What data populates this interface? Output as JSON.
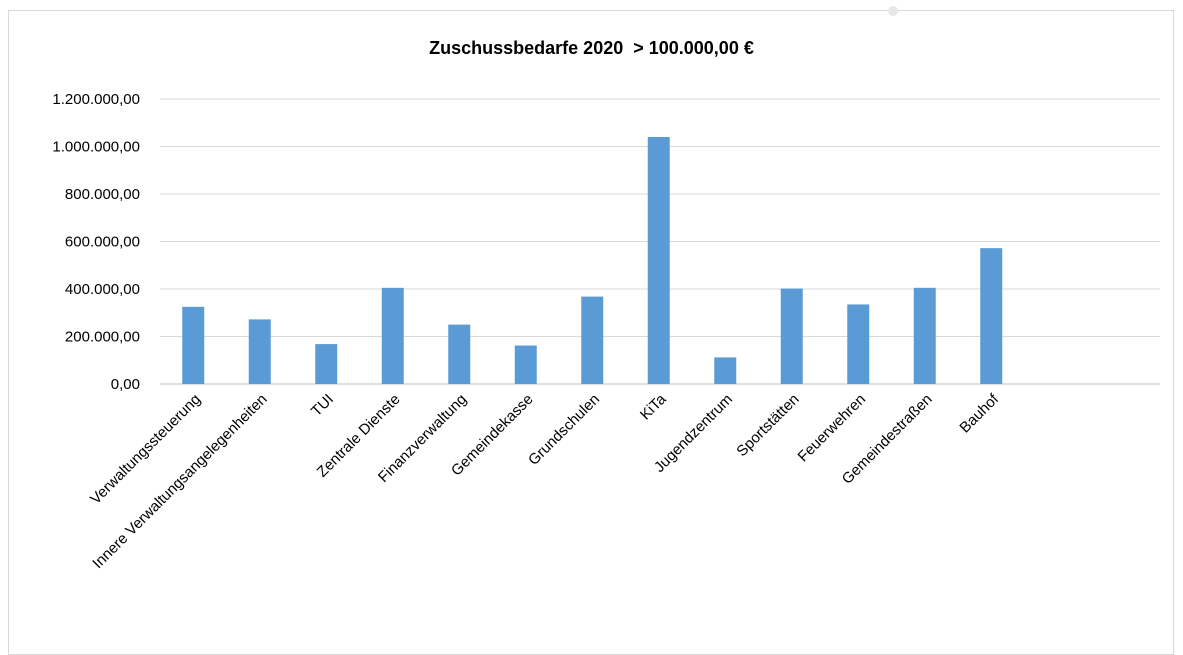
{
  "chart_data": {
    "type": "bar",
    "title": "Zuschussbedarfe 2020  > 100.000,00 €",
    "xlabel": "",
    "ylabel": "",
    "ylim": [
      0,
      1200000
    ],
    "y_ticks": [
      "0,00",
      "200.000,00",
      "400.000,00",
      "600.000,00",
      "800.000,00",
      "1.000.000,00",
      "1.200.000,00"
    ],
    "categories": [
      "Verwaltungssteuerung",
      "Innere Verwaltungsangelegenheiten",
      "TUI",
      "Zentrale Dienste",
      "Finanzverwaltung",
      "Gemeindekasse",
      "Grundschulen",
      "KiTa",
      "Jugendzentrum",
      "Sportstätten",
      "Feuerwehren",
      "Gemeindestraßen",
      "Bauhof"
    ],
    "values": [
      325000,
      272000,
      168000,
      405000,
      250000,
      162000,
      368000,
      1040000,
      112000,
      402000,
      335000,
      405000,
      572000
    ],
    "bar_color": "#5b9bd5",
    "grid": true,
    "legend": "none"
  }
}
